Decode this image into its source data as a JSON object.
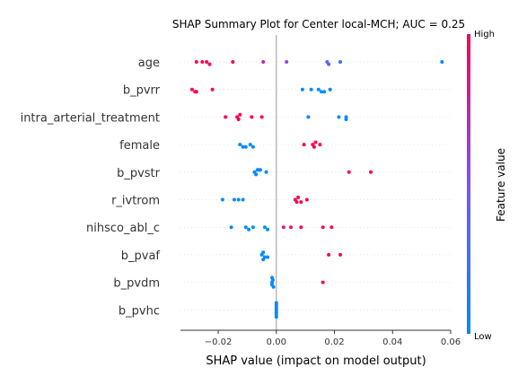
{
  "chart_data": {
    "type": "scatter",
    "title": "SHAP Summary Plot for Center local-MCH; AUC = 0.25",
    "xlabel": "SHAP value (impact on model output)",
    "xlim": [
      -0.033,
      0.06
    ],
    "xticks": [
      {
        "value": -0.02,
        "label": "−0.02"
      },
      {
        "value": 0.0,
        "label": "0.00"
      },
      {
        "value": 0.02,
        "label": "0.02"
      },
      {
        "value": 0.04,
        "label": "0.04"
      },
      {
        "value": 0.06,
        "label": "0.06"
      }
    ],
    "colorbar": {
      "title": "Feature value",
      "high_label": "High",
      "low_label": "Low",
      "low_color": "#008bfb",
      "mid_color": "#7c52ff",
      "high_color": "#ff0052"
    },
    "features": [
      {
        "name": "age",
        "points": [
          [
            -0.0275,
            1.0
          ],
          [
            -0.0255,
            1.0
          ],
          [
            -0.024,
            1.0
          ],
          [
            -0.023,
            1.0
          ],
          [
            -0.015,
            1.0
          ],
          [
            -0.0045,
            0.75
          ],
          [
            0.0035,
            0.6
          ],
          [
            0.0175,
            0.35
          ],
          [
            0.018,
            0.35
          ],
          [
            0.022,
            0.2
          ],
          [
            0.057,
            0.0
          ]
        ]
      },
      {
        "name": "b_pvrr",
        "points": [
          [
            -0.029,
            1.0
          ],
          [
            -0.028,
            1.0
          ],
          [
            -0.0275,
            1.0
          ],
          [
            -0.022,
            1.0
          ],
          [
            0.009,
            0.0
          ],
          [
            0.012,
            0.0
          ],
          [
            0.0145,
            0.0
          ],
          [
            0.0155,
            0.0
          ],
          [
            0.0165,
            0.0
          ],
          [
            0.0185,
            0.0
          ]
        ]
      },
      {
        "name": "intra_arterial_treatment",
        "points": [
          [
            -0.0175,
            1.0
          ],
          [
            -0.0135,
            1.0
          ],
          [
            -0.013,
            1.0
          ],
          [
            -0.0125,
            1.0
          ],
          [
            -0.0085,
            1.0
          ],
          [
            -0.005,
            1.0
          ],
          [
            0.011,
            0.0
          ],
          [
            0.0215,
            0.0
          ],
          [
            0.024,
            0.0
          ],
          [
            0.024,
            0.0
          ]
        ]
      },
      {
        "name": "female",
        "points": [
          [
            -0.0125,
            0.0
          ],
          [
            -0.0115,
            0.0
          ],
          [
            -0.0105,
            0.0
          ],
          [
            -0.009,
            0.0
          ],
          [
            -0.008,
            0.0
          ],
          [
            0.0095,
            1.0
          ],
          [
            0.0125,
            1.0
          ],
          [
            0.013,
            1.0
          ],
          [
            0.0135,
            1.0
          ],
          [
            0.015,
            1.0
          ]
        ]
      },
      {
        "name": "b_pvstr",
        "points": [
          [
            -0.0075,
            0.0
          ],
          [
            -0.007,
            0.0
          ],
          [
            -0.0065,
            0.0
          ],
          [
            -0.006,
            0.0
          ],
          [
            -0.0055,
            0.0
          ],
          [
            -0.0035,
            0.0
          ],
          [
            0.025,
            1.0
          ],
          [
            0.0325,
            1.0
          ]
        ]
      },
      {
        "name": "r_ivtrom",
        "points": [
          [
            -0.0185,
            0.0
          ],
          [
            -0.0145,
            0.0
          ],
          [
            -0.013,
            0.0
          ],
          [
            -0.0115,
            0.0
          ],
          [
            0.0065,
            1.0
          ],
          [
            0.007,
            1.0
          ],
          [
            0.0075,
            1.0
          ],
          [
            0.0085,
            1.0
          ],
          [
            0.0105,
            1.0
          ]
        ]
      },
      {
        "name": "nihsco_abl_c",
        "points": [
          [
            -0.0155,
            0.0
          ],
          [
            -0.0105,
            0.0
          ],
          [
            -0.0095,
            0.0
          ],
          [
            -0.008,
            0.0
          ],
          [
            -0.004,
            0.0
          ],
          [
            -0.003,
            0.0
          ],
          [
            0.0025,
            0.85
          ],
          [
            0.005,
            0.9
          ],
          [
            0.0085,
            1.0
          ],
          [
            0.016,
            1.0
          ],
          [
            0.019,
            1.0
          ]
        ]
      },
      {
        "name": "b_pvaf",
        "points": [
          [
            -0.005,
            0.0
          ],
          [
            -0.004,
            0.0
          ],
          [
            -0.003,
            0.0
          ],
          [
            -0.0045,
            0.0
          ],
          [
            -0.0045,
            0.0
          ],
          [
            0.018,
            1.0
          ],
          [
            0.022,
            1.0
          ]
        ]
      },
      {
        "name": "b_pvdm",
        "points": [
          [
            -0.0015,
            0.0
          ],
          [
            -0.0015,
            0.0
          ],
          [
            -0.0012,
            0.0
          ],
          [
            -0.001,
            0.0
          ],
          [
            -0.0015,
            0.0
          ],
          [
            0.016,
            1.0
          ]
        ]
      },
      {
        "name": "b_pvhc",
        "points": [
          [
            0.0,
            0.0
          ],
          [
            0.0,
            0.0
          ],
          [
            0.0,
            0.0
          ],
          [
            0.0,
            0.0
          ],
          [
            0.0,
            0.0
          ],
          [
            0.0,
            0.0
          ],
          [
            0.0,
            0.0
          ]
        ]
      }
    ]
  }
}
